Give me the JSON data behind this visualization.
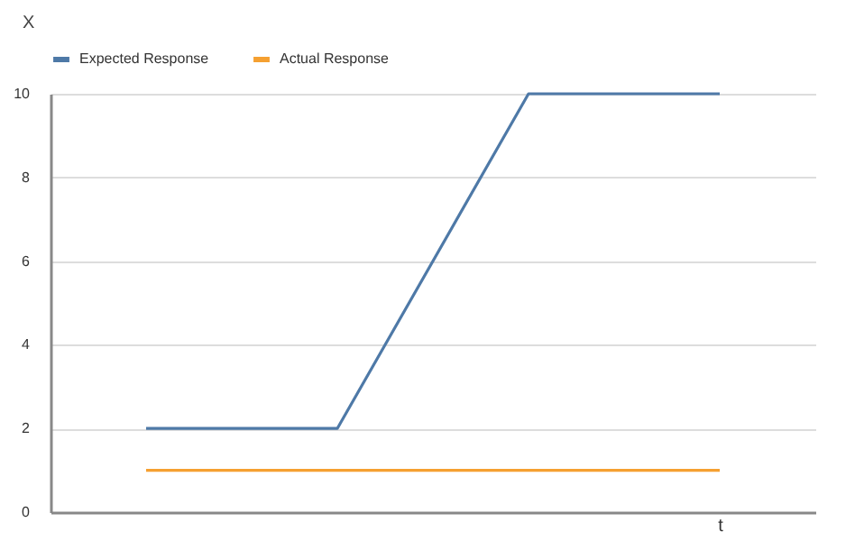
{
  "chart_data": {
    "type": "line",
    "xlabel": "t",
    "ylabel": "X",
    "categories": [
      null,
      null,
      null,
      null
    ],
    "series": [
      {
        "name": "Expected Response",
        "color": "#4e79a7",
        "values": [
          2,
          2,
          10,
          10
        ]
      },
      {
        "name": "Actual Response",
        "color": "#f5a031",
        "values": [
          1,
          1,
          1,
          1
        ]
      }
    ],
    "ylim": [
      0,
      10
    ],
    "yticks": [
      0,
      2,
      4,
      6,
      8,
      10
    ],
    "grid": "y",
    "legend": "top",
    "marker": "none",
    "line_style": "solid"
  }
}
